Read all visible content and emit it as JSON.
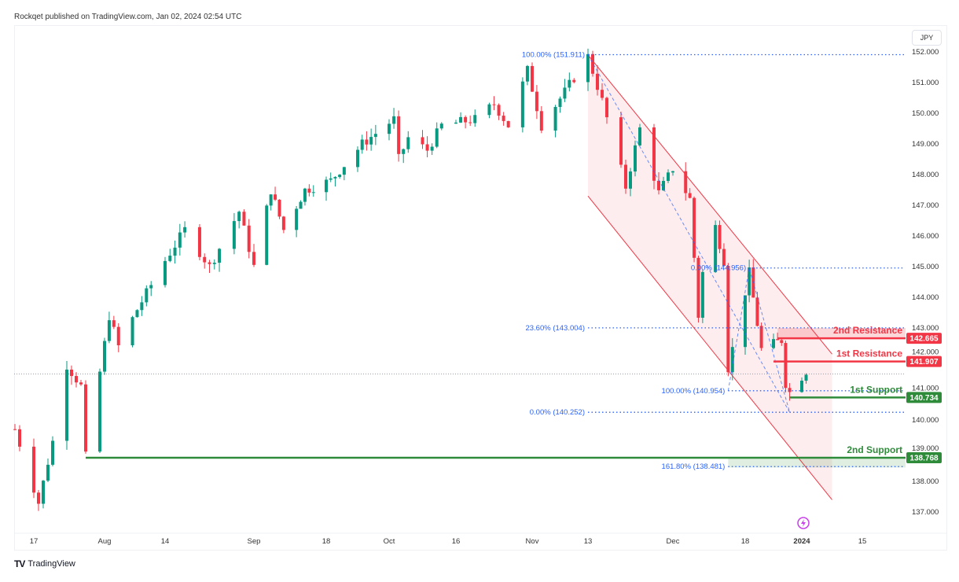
{
  "header": {
    "published": "Rockqet published on TradingView.com, Jan 02, 2024 02:54 UTC"
  },
  "footer": {
    "brand": "TradingView"
  },
  "chart_data": {
    "type": "candlestick",
    "currency": "JPY",
    "ylim": [
      136.6,
      152.4
    ],
    "y_ticks": [
      "137.000",
      "138.000",
      "139.000",
      "140.000",
      "141.000",
      "142.000",
      "143.000",
      "144.000",
      "145.000",
      "146.000",
      "147.000",
      "148.000",
      "149.000",
      "150.000",
      "151.000",
      "152.000"
    ],
    "x_ticks": [
      {
        "label": "17",
        "date": "2023-07-17"
      },
      {
        "label": "Aug",
        "date": "2023-08-01"
      },
      {
        "label": "14",
        "date": "2023-08-14"
      },
      {
        "label": "Sep",
        "date": "2023-09-01"
      },
      {
        "label": "18",
        "date": "2023-09-18"
      },
      {
        "label": "Oct",
        "date": "2023-10-02"
      },
      {
        "label": "16",
        "date": "2023-10-16"
      },
      {
        "label": "Nov",
        "date": "2023-11-01"
      },
      {
        "label": "13",
        "date": "2023-11-13"
      },
      {
        "label": "Dec",
        "date": "2023-12-01"
      },
      {
        "label": "18",
        "date": "2023-12-18"
      },
      {
        "label": "2024",
        "date": "2024-01-01"
      },
      {
        "label": "15",
        "date": "2024-01-15"
      }
    ],
    "price_path": [
      [
        "2023-07-13",
        139.7
      ],
      [
        "2023-07-18",
        137.3
      ],
      [
        "2023-07-21",
        139.3
      ],
      [
        "2023-07-24",
        141.8
      ],
      [
        "2023-07-27",
        141.1
      ],
      [
        "2023-07-28",
        138.8
      ],
      [
        "2023-08-02",
        143.4
      ],
      [
        "2023-08-04",
        142.4
      ],
      [
        "2023-08-08",
        143.6
      ],
      [
        "2023-08-14",
        145.2
      ],
      [
        "2023-08-18",
        146.2
      ],
      [
        "2023-08-23",
        145.0
      ],
      [
        "2023-08-29",
        146.8
      ],
      [
        "2023-09-01",
        145.0
      ],
      [
        "2023-09-05",
        147.5
      ],
      [
        "2023-09-08",
        146.2
      ],
      [
        "2023-09-13",
        147.5
      ],
      [
        "2023-09-19",
        147.8
      ],
      [
        "2023-09-26",
        149.0
      ],
      [
        "2023-10-03",
        149.8
      ],
      [
        "2023-10-04",
        148.5
      ],
      [
        "2023-10-06",
        149.2
      ],
      [
        "2023-10-10",
        148.8
      ],
      [
        "2023-10-13",
        149.6
      ],
      [
        "2023-10-20",
        149.8
      ],
      [
        "2023-10-24",
        150.3
      ],
      [
        "2023-10-27",
        149.6
      ],
      [
        "2023-10-31",
        151.4
      ],
      [
        "2023-11-03",
        149.6
      ],
      [
        "2023-11-08",
        150.7
      ],
      [
        "2023-11-13",
        151.85
      ],
      [
        "2023-11-16",
        150.4
      ],
      [
        "2023-11-21",
        147.6
      ],
      [
        "2023-11-24",
        149.5
      ],
      [
        "2023-11-28",
        147.4
      ],
      [
        "2023-12-01",
        148.2
      ],
      [
        "2023-12-05",
        147.2
      ],
      [
        "2023-12-07",
        143.4
      ],
      [
        "2023-12-08",
        144.8
      ],
      [
        "2023-12-11",
        146.3
      ],
      [
        "2023-12-13",
        145.2
      ],
      [
        "2023-12-14",
        141.7
      ],
      [
        "2023-12-19",
        144.8
      ],
      [
        "2023-12-22",
        142.3
      ],
      [
        "2023-12-27",
        142.6
      ],
      [
        "2023-12-28",
        141.2
      ],
      [
        "2023-12-29",
        140.9
      ],
      [
        "2024-01-02",
        141.6
      ]
    ],
    "last_price": 141.5,
    "colors": {
      "up": "#089981",
      "down": "#f23645",
      "fib": "#2962ff",
      "resistance": "#f23645",
      "support": "#2e8b3a"
    },
    "channel": {
      "upper": [
        [
          "2023-11-13",
          151.9
        ],
        [
          "2024-01-08",
          142.15
        ]
      ],
      "lower": [
        [
          "2023-11-13",
          147.3
        ],
        [
          "2024-01-08",
          137.4
        ]
      ]
    },
    "fib_trend": [
      [
        "2023-11-13",
        151.91
      ],
      [
        "2023-12-29",
        140.25
      ]
    ],
    "fib_trend2": [
      [
        "2023-12-14",
        140.95
      ],
      [
        "2023-12-19",
        144.96
      ],
      [
        "2023-12-29",
        140.25
      ]
    ],
    "fib_levels": [
      {
        "label": "100.00% (151.911)",
        "price": 151.911,
        "start": "2023-11-13"
      },
      {
        "label": "0.00% (144.956)",
        "price": 144.956,
        "start": "2023-12-19"
      },
      {
        "label": "23.60% (143.004)",
        "price": 143.004,
        "start": "2023-11-13"
      },
      {
        "label": "100.00% (140.954)",
        "price": 140.954,
        "start": "2023-12-14"
      },
      {
        "label": "0.00% (140.252)",
        "price": 140.252,
        "start": "2023-11-13"
      },
      {
        "label": "161.80% (138.481)",
        "price": 138.481,
        "start": "2023-12-14"
      }
    ],
    "levels": [
      {
        "name": "2nd Resistance",
        "price": 142.665,
        "badge": "142.665",
        "start": "2023-12-26",
        "kind": "resistance"
      },
      {
        "name": "1st Resistance",
        "price": 141.907,
        "badge": "141.907",
        "start": "2023-12-25",
        "kind": "resistance"
      },
      {
        "name": "1st Support",
        "price": 140.734,
        "badge": "140.734",
        "start": "2023-12-29",
        "kind": "support"
      },
      {
        "name": "2nd Support",
        "price": 138.768,
        "badge": "138.768",
        "start": "2023-07-28",
        "kind": "support"
      }
    ],
    "zones": [
      {
        "kind": "resistance",
        "from": "2023-12-26",
        "top": 143.0,
        "bottom": 142.665
      },
      {
        "kind": "support",
        "from": "2023-12-14",
        "top": 138.768,
        "bottom": 138.45
      }
    ]
  }
}
